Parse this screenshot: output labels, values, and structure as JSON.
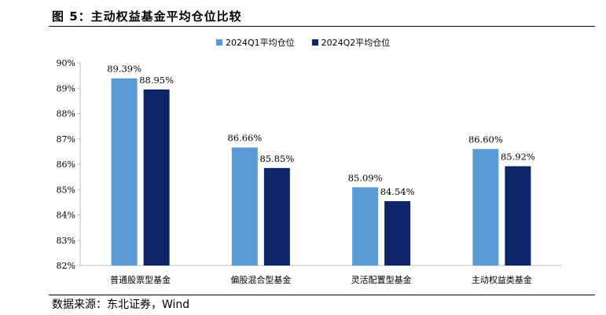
{
  "figure": {
    "title": "图 5：主动权益基金平均仓位比较",
    "source": "数据来源：东北证券，Wind"
  },
  "colors": {
    "series1": "#5b9bd5",
    "series2": "#0e2667",
    "axis": "#bfbfbf"
  },
  "chart_data": {
    "type": "bar",
    "categories": [
      "普通股票型基金",
      "偏股混合型基金",
      "灵活配置型基金",
      "主动权益类基金"
    ],
    "series": [
      {
        "name": "2024Q1平均仓位",
        "values": [
          89.39,
          86.66,
          85.09,
          86.6
        ],
        "labels": [
          "89.39%",
          "86.66%",
          "85.09%",
          "86.60%"
        ]
      },
      {
        "name": "2024Q2平均仓位",
        "values": [
          88.95,
          85.85,
          84.54,
          85.92
        ],
        "labels": [
          "88.95%",
          "85.85%",
          "84.54%",
          "85.92%"
        ]
      }
    ],
    "ylim": [
      82,
      90
    ],
    "yticks": [
      "82%",
      "83%",
      "84%",
      "85%",
      "86%",
      "87%",
      "88%",
      "89%",
      "90%"
    ],
    "grid": false,
    "legend": "top-center",
    "xlabel": "",
    "ylabel": ""
  }
}
